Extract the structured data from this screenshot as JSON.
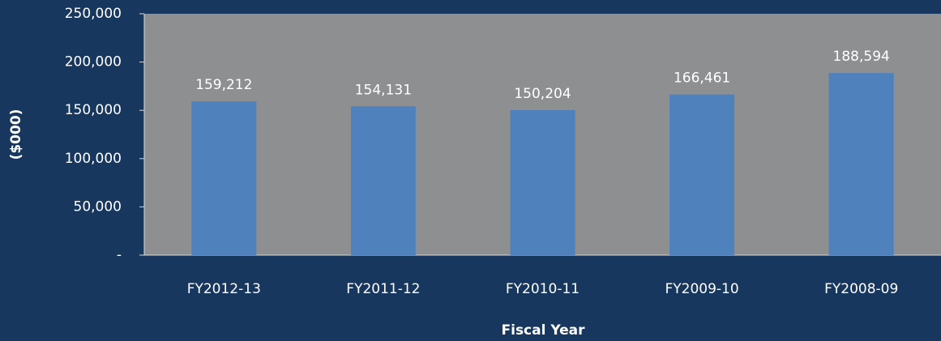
{
  "chart_data": {
    "type": "bar",
    "categories": [
      "FY2012-13",
      "FY2011-12",
      "FY2010-11",
      "FY2009-10",
      "FY2008-09"
    ],
    "values": [
      159212,
      154131,
      150204,
      166461,
      188594
    ],
    "value_labels": [
      "159,212",
      "154,131",
      "150,204",
      "166,461",
      "188,594"
    ],
    "color": "#4f81bd",
    "ylabel": "($000)",
    "xlabel": "Fiscal Year",
    "ylim": [
      0,
      250000
    ],
    "yticks": [
      {
        "value": 0,
        "label": "-"
      },
      {
        "value": 50000,
        "label": "50,000"
      },
      {
        "value": 100000,
        "label": "100,000"
      },
      {
        "value": 150000,
        "label": "150,000"
      },
      {
        "value": 200000,
        "label": "200,000"
      },
      {
        "value": 250000,
        "label": "250,000"
      }
    ],
    "grid": false
  }
}
